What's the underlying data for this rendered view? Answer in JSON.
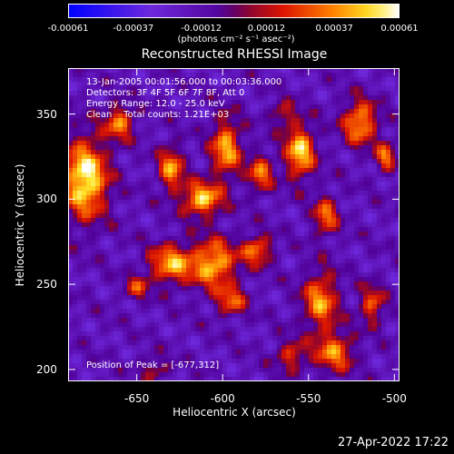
{
  "chart_data": {
    "type": "heatmap",
    "title": "Reconstructed RHESSI Image",
    "xlabel": "Heliocentric X (arcsec)",
    "ylabel": "Heliocentric Y (arcsec)",
    "xlim": [
      -690,
      -497
    ],
    "ylim": [
      193,
      377
    ],
    "x_ticks": [
      "-650",
      "-600",
      "-550",
      "-500"
    ],
    "x_tick_values": [
      -650,
      -600,
      -550,
      -500
    ],
    "y_ticks": [
      "200",
      "250",
      "300",
      "350"
    ],
    "y_tick_values": [
      200,
      250,
      300,
      350
    ],
    "colorbar": {
      "ticks": [
        "-0.00061",
        "-0.00037",
        "-0.00012",
        "0.00012",
        "0.00037",
        "0.00061"
      ],
      "tick_values": [
        -0.00061,
        -0.00037,
        -0.00012,
        0.00012,
        0.00037,
        0.00061
      ],
      "range": [
        -0.00061,
        0.00061
      ],
      "unit": "(photons cm⁻² s⁻¹ asec⁻²)"
    },
    "annotations": {
      "time_range": "13-Jan-2005 00:01:56.000 to 00:03:36.000",
      "detectors": "Detectors: 3F 4F 5F 6F 7F 8F, Att 0",
      "energy_range": "Energy Range: 12.0 - 25.0 keV",
      "clean": "Clean    Total counts: 1.21E+03",
      "peak": "Position of Peak = [-677,312]"
    },
    "sources": [
      {
        "x": -680,
        "y": 312,
        "amp": 1.0,
        "sx": 9,
        "sy": 16
      },
      {
        "x": -660,
        "y": 345,
        "amp": 0.65,
        "sx": 6,
        "sy": 7
      },
      {
        "x": -630,
        "y": 318,
        "amp": 0.7,
        "sx": 5,
        "sy": 9
      },
      {
        "x": -612,
        "y": 300,
        "amp": 0.85,
        "sx": 8,
        "sy": 7
      },
      {
        "x": -598,
        "y": 330,
        "amp": 0.75,
        "sx": 6,
        "sy": 12
      },
      {
        "x": -578,
        "y": 315,
        "amp": 0.6,
        "sx": 5,
        "sy": 8
      },
      {
        "x": -555,
        "y": 328,
        "amp": 0.85,
        "sx": 6,
        "sy": 11
      },
      {
        "x": -540,
        "y": 290,
        "amp": 0.6,
        "sx": 5,
        "sy": 8
      },
      {
        "x": -520,
        "y": 345,
        "amp": 0.75,
        "sx": 7,
        "sy": 9
      },
      {
        "x": -505,
        "y": 325,
        "amp": 0.6,
        "sx": 4,
        "sy": 6
      },
      {
        "x": -630,
        "y": 262,
        "amp": 0.75,
        "sx": 9,
        "sy": 8
      },
      {
        "x": -605,
        "y": 262,
        "amp": 0.8,
        "sx": 9,
        "sy": 10
      },
      {
        "x": -580,
        "y": 270,
        "amp": 0.65,
        "sx": 6,
        "sy": 6
      },
      {
        "x": -595,
        "y": 240,
        "amp": 0.55,
        "sx": 6,
        "sy": 6
      },
      {
        "x": -650,
        "y": 248,
        "amp": 0.45,
        "sx": 5,
        "sy": 5
      },
      {
        "x": -543,
        "y": 240,
        "amp": 0.7,
        "sx": 7,
        "sy": 12
      },
      {
        "x": -535,
        "y": 210,
        "amp": 0.65,
        "sx": 8,
        "sy": 8
      },
      {
        "x": -513,
        "y": 238,
        "amp": 0.55,
        "sx": 5,
        "sy": 8
      },
      {
        "x": -560,
        "y": 208,
        "amp": 0.5,
        "sx": 6,
        "sy": 6
      },
      {
        "x": -640,
        "y": 200,
        "amp": 0.35,
        "sx": 6,
        "sy": 5
      },
      {
        "x": -565,
        "y": 350,
        "amp": 0.4,
        "sx": 5,
        "sy": 5
      }
    ]
  },
  "timestamp": "27-Apr-2022 17:22"
}
